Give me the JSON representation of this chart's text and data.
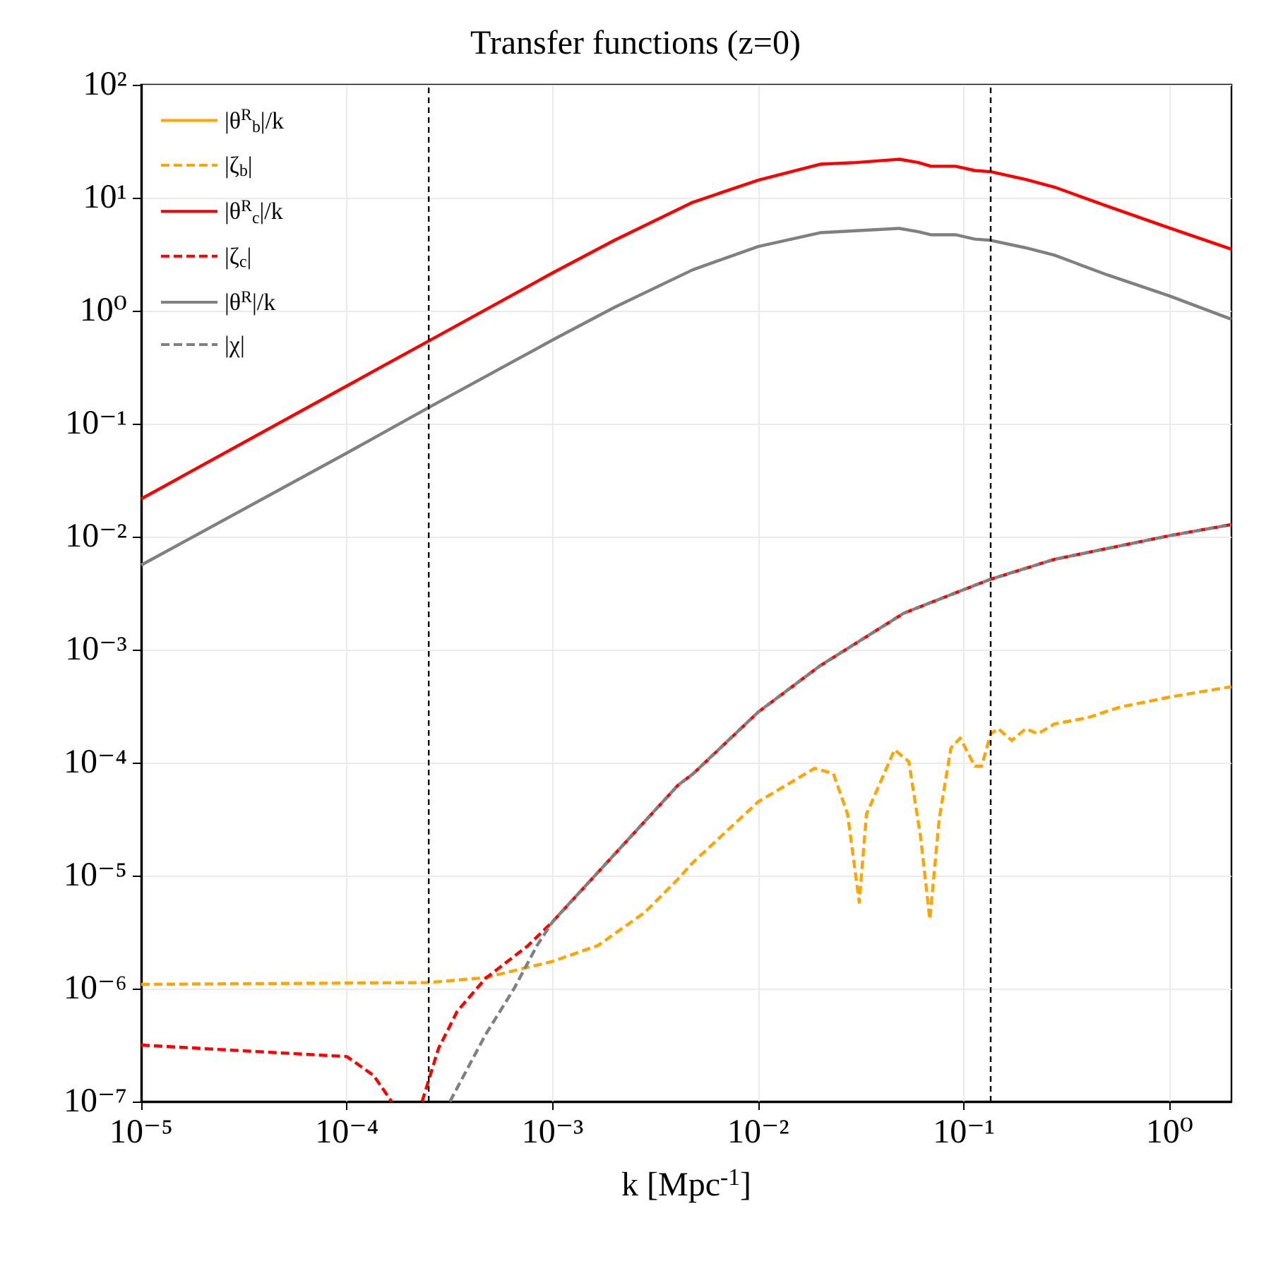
{
  "chart_data": {
    "type": "line",
    "title": "Transfer functions (z=0)",
    "xlabel": "k [Mpc$^{-1}$]",
    "log": "xy",
    "grid": true,
    "legend": "top left",
    "xlim": [
      1e-05,
      2
    ],
    "ylim": [
      1e-07,
      100
    ],
    "xticks": [
      {
        "value": 1e-05,
        "label": "10⁻⁵"
      },
      {
        "value": 0.0001,
        "label": "10⁻⁴"
      },
      {
        "value": 0.001,
        "label": "10⁻³"
      },
      {
        "value": 0.01,
        "label": "10⁻²"
      },
      {
        "value": 0.1,
        "label": "10⁻¹"
      },
      {
        "value": 1,
        "label": "10⁰"
      }
    ],
    "yticks": [
      {
        "value": 1e-07,
        "label": "10⁻⁷"
      },
      {
        "value": 1e-06,
        "label": "10⁻⁶"
      },
      {
        "value": 1e-05,
        "label": "10⁻⁵"
      },
      {
        "value": 0.0001,
        "label": "10⁻⁴"
      },
      {
        "value": 0.001,
        "label": "10⁻³"
      },
      {
        "value": 0.01,
        "label": "10⁻²"
      },
      {
        "value": 0.1,
        "label": "10⁻¹"
      },
      {
        "value": 1,
        "label": "10⁰"
      },
      {
        "value": 10,
        "label": "10¹"
      },
      {
        "value": 100,
        "label": "10²"
      }
    ],
    "ref_lines": [
      {
        "axis": "x",
        "value": 0.00025,
        "color": "#000000",
        "line_style": "dashed"
      },
      {
        "axis": "x",
        "value": 0.135,
        "color": "#000000",
        "line_style": "dashed"
      }
    ],
    "series": [
      {
        "name": "|θ$^{R}$$_{b}$|/k",
        "color": "#ffa500",
        "line_style": "solid"
      },
      {
        "name": "|ζ$_{b}$|",
        "color": "#ffa500",
        "line_style": "dashed",
        "x": [
          1e-05,
          0.00025,
          0.000472,
          0.001,
          0.00166,
          0.0028,
          0.00407,
          0.0048,
          0.01,
          0.0188,
          0.0232,
          0.0272,
          0.031,
          0.0336,
          0.046,
          0.054,
          0.0616,
          0.0683,
          0.0759,
          0.0865,
          0.096,
          0.113,
          0.122,
          0.135,
          0.147,
          0.171,
          0.2,
          0.229,
          0.276,
          0.4,
          0.575,
          1,
          2
        ],
        "values": [
          1.09e-06,
          1.13e-06,
          1.25e-06,
          1.74e-06,
          2.4e-06,
          4.7e-06,
          9.3e-06,
          1.3e-05,
          4.5e-05,
          8.9e-05,
          8e-05,
          3.5e-05,
          5.8e-06,
          3.5e-05,
          0.00013,
          0.000102,
          2.2e-05,
          4.1e-06,
          3.2e-05,
          0.000135,
          0.000165,
          9.3e-05,
          9.3e-05,
          0.00018,
          0.0002,
          0.000157,
          0.0002,
          0.00018,
          0.00022,
          0.00025,
          0.00031,
          0.00038,
          0.00047
        ]
      },
      {
        "name": "|θ$^{R}$$_{c}$|/k",
        "color": "#ff0000",
        "line_style": "solid",
        "x": [
          1e-05,
          0.0001,
          0.00025,
          0.001,
          0.002,
          0.0048,
          0.01,
          0.02,
          0.03,
          0.0486,
          0.06,
          0.069,
          0.091,
          0.113,
          0.135,
          0.2,
          0.276,
          0.5,
          1,
          2
        ],
        "values": [
          0.0216,
          0.216,
          0.54,
          2.16,
          4.2,
          9.1,
          14.3,
          19.8,
          20.5,
          21.9,
          20.5,
          19,
          19,
          17.4,
          17,
          14.5,
          12.4,
          8.4,
          5.4,
          3.5
        ]
      },
      {
        "name": "|ζ$_{c}$|",
        "color": "#ff0000",
        "line_style": "dashed",
        "x": [
          1e-05,
          0.0001,
          0.000135,
          0.000165,
          0.00019,
          0.000232,
          0.000279,
          0.000344,
          0.000472,
          0.00076,
          0.001,
          0.00407,
          0.0048,
          0.01,
          0.02,
          0.051,
          0.1,
          0.135,
          0.276,
          1,
          2
        ],
        "values": [
          3.16e-07,
          2.5e-07,
          1.7e-07,
          1e-07,
          null,
          1e-07,
          2.95e-07,
          6.3e-07,
          1.23e-06,
          2.4e-06,
          3.9e-06,
          6.3e-05,
          7.9e-05,
          0.00028,
          0.00072,
          0.0021,
          0.0034,
          0.0042,
          0.0063,
          0.0102,
          0.0128
        ]
      },
      {
        "name": "|θ$^{R}$|/k",
        "color": "#808080",
        "line_style": "solid",
        "x": [
          1e-05,
          0.0001,
          0.00025,
          0.001,
          0.002,
          0.0048,
          0.01,
          0.02,
          0.03,
          0.0486,
          0.06,
          0.069,
          0.091,
          0.113,
          0.135,
          0.2,
          0.276,
          0.5,
          1,
          2
        ],
        "values": [
          0.0056,
          0.055,
          0.139,
          0.55,
          1.07,
          2.3,
          3.7,
          4.9,
          5.1,
          5.35,
          5.0,
          4.7,
          4.7,
          4.3,
          4.2,
          3.6,
          3.1,
          2.07,
          1.35,
          0.84
        ]
      },
      {
        "name": "|χ|",
        "color": "#808080",
        "line_style": "dashed",
        "x": [
          0.000317,
          0.000472,
          0.00065,
          0.00084,
          0.001,
          0.00407,
          0.0048,
          0.01,
          0.02,
          0.051,
          0.1,
          0.135,
          0.276,
          1,
          2
        ],
        "values": [
          1e-07,
          3.9e-07,
          1e-06,
          2.4e-06,
          3.9e-06,
          6.3e-05,
          7.9e-05,
          0.00028,
          0.00072,
          0.0021,
          0.0034,
          0.0042,
          0.0063,
          0.0102,
          0.0128
        ]
      }
    ]
  }
}
